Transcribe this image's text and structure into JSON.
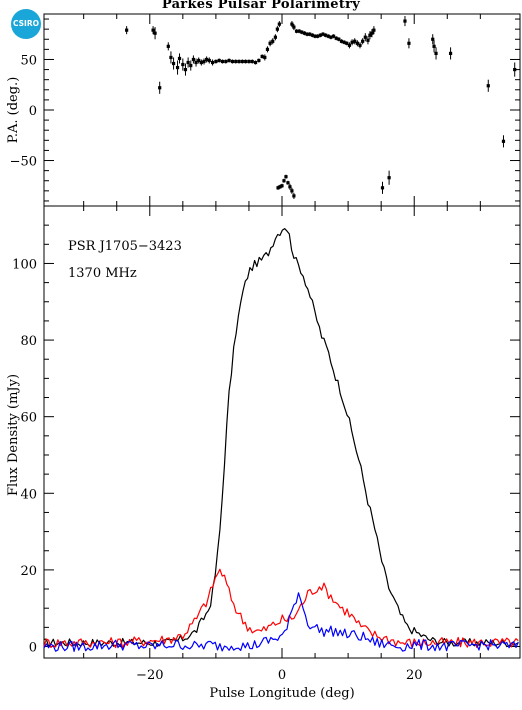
{
  "title": "Parkes Pulsar Polarimetry",
  "logo_text": "CSIRO",
  "colors": {
    "total_intensity": "#000000",
    "linear_polarization": "#ff0000",
    "circular_polarization": "#0000ff",
    "logo": "#1aa6d8"
  },
  "chart_data": [
    {
      "type": "scatter",
      "ylabel": "P.A. (deg.)",
      "xlim": [
        -36,
        36
      ],
      "ylim": [
        -95,
        95
      ],
      "x_ticks": [
        -20,
        0,
        20
      ],
      "y_ticks": [
        -50,
        0,
        50
      ],
      "y_tick_labels": [
        "−50",
        "0",
        "50"
      ],
      "error_bars": true,
      "points": [
        [
          -23.5,
          79,
          4
        ],
        [
          -19.5,
          79,
          4
        ],
        [
          -19.2,
          76,
          6
        ],
        [
          -18.5,
          22,
          6
        ],
        [
          -17.2,
          63,
          4
        ],
        [
          -16.8,
          52,
          6
        ],
        [
          -16.4,
          46,
          6
        ],
        [
          -15.8,
          42,
          7
        ],
        [
          -15.5,
          51,
          5
        ],
        [
          -15.0,
          45,
          6
        ],
        [
          -14.6,
          40,
          6
        ],
        [
          -14.2,
          47,
          5
        ],
        [
          -13.8,
          44,
          5
        ],
        [
          -13.4,
          50,
          4
        ],
        [
          -13.0,
          47,
          4
        ],
        [
          -12.6,
          49,
          3
        ],
        [
          -12.2,
          47,
          3
        ],
        [
          -11.8,
          48,
          3
        ],
        [
          -11.4,
          50,
          3
        ],
        [
          -11.0,
          49,
          3
        ],
        [
          -10.5,
          47,
          3
        ],
        [
          -10.0,
          48,
          2
        ],
        [
          -9.5,
          49,
          2
        ],
        [
          -9.0,
          48,
          2
        ],
        [
          -8.5,
          48,
          2
        ],
        [
          -8.0,
          49,
          2
        ],
        [
          -7.5,
          48,
          2
        ],
        [
          -7.0,
          48,
          2
        ],
        [
          -6.5,
          48,
          2
        ],
        [
          -6.0,
          48,
          2
        ],
        [
          -5.5,
          48,
          2
        ],
        [
          -5.0,
          48,
          2
        ],
        [
          -4.5,
          48,
          2
        ],
        [
          -4.0,
          47,
          2
        ],
        [
          -3.5,
          49,
          2
        ],
        [
          -3.0,
          53,
          2
        ],
        [
          -2.6,
          52,
          3
        ],
        [
          -2.2,
          60,
          3
        ],
        [
          -1.8,
          66,
          3
        ],
        [
          -1.4,
          68,
          3
        ],
        [
          -1.0,
          72,
          3
        ],
        [
          -0.7,
          80,
          3
        ],
        [
          -0.4,
          85,
          3
        ],
        [
          -0.6,
          -77,
          2
        ],
        [
          -0.3,
          -76,
          2
        ],
        [
          0.0,
          -75,
          2
        ],
        [
          0.3,
          -70,
          2
        ],
        [
          0.6,
          -66,
          2
        ],
        [
          0.9,
          -72,
          2
        ],
        [
          1.2,
          -76,
          3
        ],
        [
          1.5,
          -80,
          3
        ],
        [
          1.8,
          -85,
          3
        ],
        [
          1.5,
          85,
          3
        ],
        [
          1.8,
          82,
          3
        ],
        [
          2.2,
          78,
          2
        ],
        [
          2.6,
          78,
          2
        ],
        [
          3.0,
          77,
          2
        ],
        [
          3.4,
          76,
          2
        ],
        [
          3.8,
          75,
          2
        ],
        [
          4.2,
          75,
          2
        ],
        [
          4.6,
          74,
          2
        ],
        [
          5.0,
          73,
          2
        ],
        [
          5.4,
          73,
          2
        ],
        [
          5.8,
          74,
          2
        ],
        [
          6.2,
          75,
          2
        ],
        [
          6.6,
          74,
          2
        ],
        [
          7.0,
          73,
          2
        ],
        [
          7.4,
          72,
          2
        ],
        [
          7.8,
          73,
          2
        ],
        [
          8.2,
          71,
          2
        ],
        [
          8.6,
          70,
          2
        ],
        [
          9.0,
          68,
          2
        ],
        [
          9.4,
          67,
          2
        ],
        [
          9.8,
          66,
          2
        ],
        [
          10.2,
          64,
          3
        ],
        [
          10.6,
          67,
          3
        ],
        [
          11.0,
          68,
          3
        ],
        [
          11.4,
          66,
          3
        ],
        [
          11.8,
          64,
          3
        ],
        [
          12.2,
          68,
          3
        ],
        [
          12.6,
          72,
          4
        ],
        [
          13.0,
          69,
          4
        ],
        [
          13.3,
          74,
          4
        ],
        [
          13.6,
          76,
          4
        ],
        [
          13.9,
          79,
          4
        ],
        [
          15.2,
          -77,
          6
        ],
        [
          16.2,
          -67,
          7
        ],
        [
          18.6,
          88,
          5
        ],
        [
          19.2,
          66,
          5
        ],
        [
          22.8,
          70,
          5
        ],
        [
          23.0,
          63,
          6
        ],
        [
          23.3,
          56,
          6
        ],
        [
          25.5,
          56,
          6
        ],
        [
          31.2,
          24,
          6
        ],
        [
          33.5,
          -31,
          6
        ],
        [
          35.2,
          40,
          7
        ]
      ]
    },
    {
      "type": "line",
      "xlabel": "Pulse Longitude (deg)",
      "ylabel": "Flux Density (mJy)",
      "xlim": [
        -36,
        36
      ],
      "ylim": [
        -3,
        115
      ],
      "x_ticks": [
        -20,
        0,
        20
      ],
      "x_tick_labels": [
        "−20",
        "0",
        "20"
      ],
      "y_ticks": [
        0,
        20,
        40,
        60,
        80,
        100
      ],
      "annotations": [
        "PSR J1705−3423",
        "1370 MHz"
      ],
      "series": [
        {
          "role": "total_intensity",
          "x": [
            -36,
            -30,
            -25,
            -20,
            -17,
            -15,
            -14,
            -13,
            -12,
            -11,
            -10.5,
            -10,
            -9.5,
            -9,
            -8.5,
            -8,
            -7,
            -6,
            -5,
            -4,
            -3,
            -2,
            -1,
            0,
            0.5,
            1,
            1.5,
            2,
            3,
            4,
            5,
            6,
            7,
            8,
            9,
            10,
            11,
            12,
            13,
            14,
            15,
            16,
            17,
            18,
            19,
            20,
            21,
            22,
            23,
            25,
            28,
            31,
            34,
            36
          ],
          "y": [
            1,
            1,
            1,
            1,
            1,
            2,
            3,
            4,
            7,
            10,
            14,
            20,
            28,
            40,
            54,
            66,
            82,
            92,
            98,
            100,
            101,
            103,
            107,
            109,
            110,
            108,
            104,
            101,
            98,
            93,
            87,
            81,
            77,
            71,
            66,
            60,
            53,
            46,
            38,
            31,
            23,
            16,
            12,
            8,
            5,
            4,
            3,
            2,
            1.5,
            1,
            1,
            1,
            1,
            1
          ]
        },
        {
          "role": "linear_polarization",
          "x": [
            -36,
            -30,
            -25,
            -20,
            -17,
            -15,
            -14,
            -13,
            -12,
            -11,
            -10.5,
            -10,
            -9.5,
            -9,
            -8.5,
            -8,
            -7,
            -6,
            -5,
            -4,
            -3,
            -2,
            -1,
            0,
            1,
            2,
            3,
            4,
            5,
            6,
            7,
            8,
            9,
            10,
            11,
            12,
            13,
            14,
            15,
            16,
            17,
            18,
            19,
            20,
            22,
            25,
            28,
            31,
            34,
            36
          ],
          "y": [
            1,
            1,
            1,
            1.5,
            2,
            3,
            5,
            7,
            10,
            13,
            16,
            18,
            20,
            19,
            17,
            14,
            10,
            7,
            5,
            4,
            4,
            5,
            6,
            7,
            7,
            8,
            11,
            14,
            15,
            16,
            14,
            12,
            10,
            9,
            7,
            5,
            4,
            3,
            2.5,
            2,
            1.5,
            1,
            1,
            1,
            1,
            1,
            1,
            1,
            1,
            1
          ]
        },
        {
          "role": "circular_polarization",
          "x": [
            -36,
            -30,
            -25,
            -20,
            -17,
            -15,
            -13,
            -11,
            -9,
            -7,
            -5,
            -4,
            -3,
            -2,
            -1,
            0,
            0.5,
            1,
            1.5,
            2,
            2.5,
            3,
            3.5,
            4,
            5,
            6,
            7,
            8,
            9,
            10,
            11,
            12,
            13,
            14,
            16,
            18,
            20,
            25,
            30,
            36
          ],
          "y": [
            0,
            0,
            0.5,
            0,
            0.5,
            0.5,
            0,
            0.5,
            0,
            0.5,
            0,
            0.5,
            1,
            1.5,
            2,
            3,
            3.5,
            6,
            9,
            12,
            14,
            12,
            8,
            6,
            5,
            4,
            4,
            4,
            3.5,
            3,
            3,
            2.5,
            2,
            1,
            0.5,
            0,
            0.5,
            0,
            0.5,
            0
          ]
        }
      ]
    }
  ]
}
